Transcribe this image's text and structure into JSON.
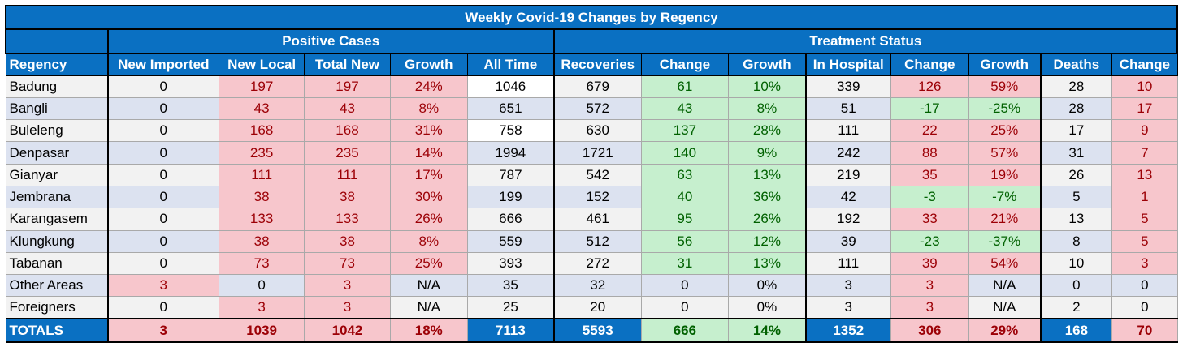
{
  "title": "Weekly Covid-19 Changes by Regency",
  "groups": {
    "positive": "Positive Cases",
    "treatment": "Treatment Status"
  },
  "columns": [
    "Regency",
    "New Imported",
    "New Local",
    "Total New",
    "Growth",
    "All Time",
    "Recoveries",
    "Change",
    "Growth",
    "In Hospital",
    "Change",
    "Growth",
    "Deaths",
    "Change"
  ],
  "rows": [
    {
      "cells": [
        "Badung",
        "0",
        "197",
        "197",
        "24%",
        "1046",
        "679",
        "61",
        "10%",
        "339",
        "126",
        "59%",
        "28",
        "10"
      ],
      "styles": [
        "g",
        "g",
        "red",
        "red",
        "red",
        "w",
        "g",
        "grn",
        "grn",
        "g",
        "red",
        "red",
        "g",
        "red"
      ]
    },
    {
      "cells": [
        "Bangli",
        "0",
        "43",
        "43",
        "8%",
        "651",
        "572",
        "43",
        "8%",
        "51",
        "-17",
        "-25%",
        "28",
        "17"
      ],
      "styles": [
        "b",
        "b",
        "red",
        "red",
        "red",
        "b",
        "b",
        "grn",
        "grn",
        "b",
        "grn",
        "grn",
        "b",
        "red"
      ]
    },
    {
      "cells": [
        "Buleleng",
        "0",
        "168",
        "168",
        "31%",
        "758",
        "630",
        "137",
        "28%",
        "111",
        "22",
        "25%",
        "17",
        "9"
      ],
      "styles": [
        "g",
        "g",
        "red",
        "red",
        "red",
        "w",
        "g",
        "grn",
        "grn",
        "g",
        "red",
        "red",
        "g",
        "red"
      ]
    },
    {
      "cells": [
        "Denpasar",
        "0",
        "235",
        "235",
        "14%",
        "1994",
        "1721",
        "140",
        "9%",
        "242",
        "88",
        "57%",
        "31",
        "7"
      ],
      "styles": [
        "b",
        "b",
        "red",
        "red",
        "red",
        "b",
        "b",
        "grn",
        "grn",
        "b",
        "red",
        "red",
        "b",
        "red"
      ]
    },
    {
      "cells": [
        "Gianyar",
        "0",
        "111",
        "111",
        "17%",
        "787",
        "542",
        "63",
        "13%",
        "219",
        "35",
        "19%",
        "26",
        "13"
      ],
      "styles": [
        "g",
        "g",
        "red",
        "red",
        "red",
        "g",
        "g",
        "grn",
        "grn",
        "g",
        "red",
        "red",
        "g",
        "red"
      ]
    },
    {
      "cells": [
        "Jembrana",
        "0",
        "38",
        "38",
        "30%",
        "199",
        "152",
        "40",
        "36%",
        "42",
        "-3",
        "-7%",
        "5",
        "1"
      ],
      "styles": [
        "b",
        "b",
        "red",
        "red",
        "red",
        "b",
        "b",
        "grn",
        "grn",
        "b",
        "grn",
        "grn",
        "b",
        "red"
      ]
    },
    {
      "cells": [
        "Karangasem",
        "0",
        "133",
        "133",
        "26%",
        "666",
        "461",
        "95",
        "26%",
        "192",
        "33",
        "21%",
        "13",
        "5"
      ],
      "styles": [
        "g",
        "g",
        "red",
        "red",
        "red",
        "g",
        "g",
        "grn",
        "grn",
        "g",
        "red",
        "red",
        "g",
        "red"
      ]
    },
    {
      "cells": [
        "Klungkung",
        "0",
        "38",
        "38",
        "8%",
        "559",
        "512",
        "56",
        "12%",
        "39",
        "-23",
        "-37%",
        "8",
        "5"
      ],
      "styles": [
        "b",
        "b",
        "red",
        "red",
        "red",
        "b",
        "b",
        "grn",
        "grn",
        "b",
        "grn",
        "grn",
        "b",
        "red"
      ]
    },
    {
      "cells": [
        "Tabanan",
        "0",
        "73",
        "73",
        "25%",
        "393",
        "272",
        "31",
        "13%",
        "111",
        "39",
        "54%",
        "10",
        "3"
      ],
      "styles": [
        "g",
        "g",
        "red",
        "red",
        "red",
        "g",
        "g",
        "grn",
        "grn",
        "g",
        "red",
        "red",
        "g",
        "red"
      ]
    },
    {
      "cells": [
        "Other Areas",
        "3",
        "0",
        "3",
        "N/A",
        "35",
        "32",
        "0",
        "0%",
        "3",
        "3",
        "N/A",
        "0",
        "0"
      ],
      "styles": [
        "b",
        "red",
        "b",
        "red",
        "b",
        "b",
        "b",
        "b",
        "b",
        "b",
        "red",
        "b",
        "b",
        "b"
      ]
    },
    {
      "cells": [
        "Foreigners",
        "0",
        "3",
        "3",
        "N/A",
        "25",
        "20",
        "0",
        "0%",
        "3",
        "3",
        "N/A",
        "2",
        "0"
      ],
      "styles": [
        "g",
        "g",
        "red",
        "red",
        "g",
        "g",
        "g",
        "g",
        "g",
        "g",
        "red",
        "g",
        "g",
        "g"
      ]
    }
  ],
  "totals": {
    "cells": [
      "TOTALS",
      "3",
      "1039",
      "1042",
      "18%",
      "7113",
      "5593",
      "666",
      "14%",
      "1352",
      "306",
      "29%",
      "168",
      "70"
    ],
    "styles": [
      "blu",
      "red",
      "red",
      "red",
      "red",
      "blu",
      "blu",
      "grn",
      "grn",
      "blu",
      "red",
      "red",
      "blu",
      "red"
    ]
  },
  "colors": {
    "header_blue": "#0a70c2",
    "pink": "#f7c6cc",
    "pink_text": "#9c0006",
    "green": "#c6efce",
    "green_text": "#006100",
    "band": "#dce2f0"
  }
}
